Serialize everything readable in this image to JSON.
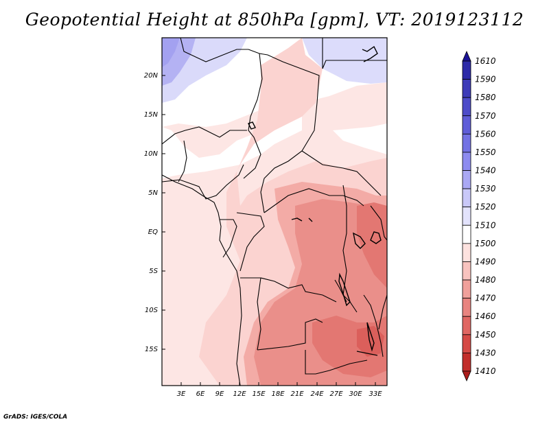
{
  "title": "Geopotential Height at 850hPa [gpm], VT: 2019123112",
  "credit": "GrADS: IGES/COLA",
  "axes": {
    "lat_labels": [
      "20N",
      "15N",
      "10N",
      "5N",
      "EQ",
      "5S",
      "10S",
      "15S"
    ],
    "lon_labels": [
      "3E",
      "6E",
      "9E",
      "12E",
      "15E",
      "18E",
      "21E",
      "24E",
      "27E",
      "30E",
      "33E"
    ]
  },
  "colorbar": {
    "labels": [
      "1610",
      "1590",
      "1580",
      "1570",
      "1560",
      "1550",
      "1540",
      "1530",
      "1520",
      "1510",
      "1500",
      "1490",
      "1480",
      "1470",
      "1460",
      "1450",
      "1430",
      "1410"
    ],
    "colors": [
      "#1a1396",
      "#2d2aa8",
      "#3d3bb8",
      "#4d4cc9",
      "#5f5dd8",
      "#7372e4",
      "#8d8bef",
      "#aaa8f4",
      "#c9c8f8",
      "#e3e3fc",
      "#ffffff",
      "#fde2df",
      "#f8c3bf",
      "#f0a09b",
      "#e88480",
      "#e06763",
      "#d54a46",
      "#c22e2b",
      "#ac1d1b"
    ]
  }
}
